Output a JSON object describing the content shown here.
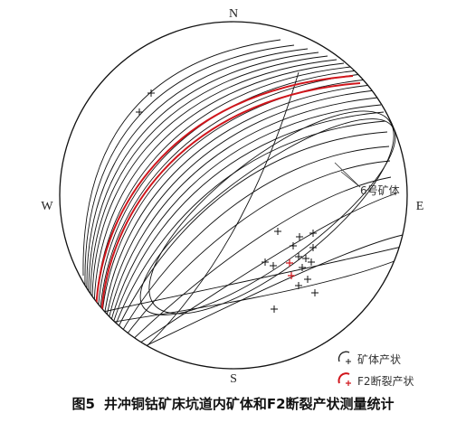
{
  "diagram": {
    "directions": {
      "north": "N",
      "south": "S",
      "west": "W",
      "east": "E"
    },
    "ore_body_label": "6号矿体",
    "legend": {
      "ore_body": {
        "label": "矿体产状",
        "color": "#222222"
      },
      "fault_f2": {
        "label": "F2断裂产状",
        "color": "#d0151b"
      }
    },
    "colors": {
      "outline": "#111111",
      "ore_body": "#111111",
      "fault": "#d0151b"
    }
  },
  "caption": {
    "number": "图5",
    "text": "井冲铜钴矿床坑道内矿体和F2断裂产状测量统计"
  }
}
